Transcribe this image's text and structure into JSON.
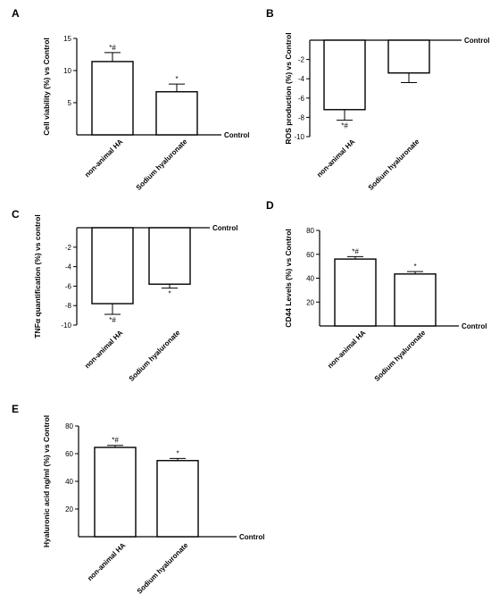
{
  "chart_data": [
    {
      "panel": "A",
      "type": "bar",
      "ylabel": "Cell viability (%) vs Control",
      "baseline_label": "Control",
      "categories": [
        "non-animal HA",
        "Sodium hyaluronate"
      ],
      "values": [
        11.4,
        6.7
      ],
      "errors": [
        1.4,
        1.2
      ],
      "annotations": [
        "*#",
        "*"
      ],
      "yticks": [
        "5",
        "10",
        "15"
      ],
      "ylim": [
        0,
        15
      ]
    },
    {
      "panel": "B",
      "type": "bar",
      "ylabel": "ROS production (%) vs Control",
      "baseline_label": "Control",
      "categories": [
        "non-animal HA",
        "Sodium hyaluronate"
      ],
      "values": [
        -7.2,
        -3.4
      ],
      "errors": [
        1.1,
        1.0
      ],
      "annotations": [
        "*#",
        ""
      ],
      "yticks": [
        "-2",
        "-4",
        "-6",
        "-8",
        "-10"
      ],
      "ylim": [
        -10,
        0
      ]
    },
    {
      "panel": "C",
      "type": "bar",
      "ylabel": "TNFα quantification (%) vs control",
      "baseline_label": "Control",
      "categories": [
        "non-animal HA",
        "Sodium hyaluronate"
      ],
      "values": [
        -7.8,
        -5.8
      ],
      "errors": [
        1.1,
        0.4
      ],
      "annotations": [
        "*#",
        "*"
      ],
      "yticks": [
        "-2",
        "-4",
        "-6",
        "-8",
        "-10"
      ],
      "ylim": [
        -10,
        0
      ]
    },
    {
      "panel": "D",
      "type": "bar",
      "ylabel": "CD44 Levels (%) vs Control",
      "baseline_label": "Control",
      "categories": [
        "non-animal HA",
        "Sodium hyaluronate"
      ],
      "values": [
        56,
        43.5
      ],
      "errors": [
        2,
        2
      ],
      "annotations": [
        "*#",
        "*"
      ],
      "yticks": [
        "20",
        "40",
        "60",
        "80"
      ],
      "ylim": [
        0,
        80
      ]
    },
    {
      "panel": "E",
      "type": "bar",
      "ylabel": "Hyaluronic acid ng/ml (%) vs Control",
      "baseline_label": "Control",
      "categories": [
        "non-animal HA",
        "Sodium hyaluronate"
      ],
      "values": [
        64.5,
        55
      ],
      "errors": [
        1.5,
        1.5
      ],
      "annotations": [
        "*#",
        "*"
      ],
      "yticks": [
        "20",
        "40",
        "60",
        "80"
      ],
      "ylim": [
        0,
        80
      ]
    }
  ]
}
